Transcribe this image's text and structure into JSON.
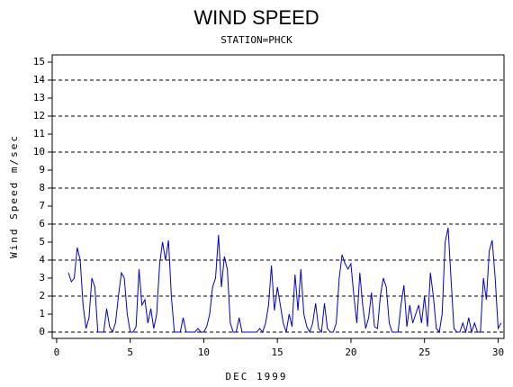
{
  "chart_data": {
    "type": "line",
    "title": "WIND SPEED",
    "subtitle": "STATION=PHCK",
    "x_label": "DEC 1999",
    "y_label": "Wind Speed m/sec",
    "xlim": [
      -0.3,
      30.4
    ],
    "ylim": [
      -0.35,
      15.4
    ],
    "xticks": [
      0,
      5,
      10,
      15,
      20,
      25,
      30
    ],
    "yticks": [
      0,
      1,
      2,
      3,
      4,
      5,
      6,
      7,
      8,
      9,
      10,
      11,
      12,
      13,
      14,
      15
    ],
    "grid": true,
    "series": [
      {
        "name": "Wind Speed",
        "color": "#0000cc",
        "x": [
          0.8,
          1.0,
          1.2,
          1.4,
          1.6,
          1.8,
          2.0,
          2.2,
          2.4,
          2.6,
          2.8,
          3.0,
          3.2,
          3.4,
          3.6,
          3.8,
          4.0,
          4.2,
          4.4,
          4.6,
          4.8,
          5.0,
          5.2,
          5.4,
          5.6,
          5.8,
          6.0,
          6.2,
          6.4,
          6.6,
          6.8,
          7.0,
          7.2,
          7.4,
          7.6,
          7.8,
          8.0,
          8.2,
          8.4,
          8.6,
          8.8,
          9.0,
          9.2,
          9.4,
          9.6,
          9.8,
          10.0,
          10.2,
          10.4,
          10.6,
          10.8,
          11.0,
          11.2,
          11.4,
          11.6,
          11.8,
          12.0,
          12.2,
          12.4,
          12.6,
          12.8,
          13.0,
          13.2,
          13.4,
          13.6,
          13.8,
          14.0,
          14.2,
          14.4,
          14.6,
          14.8,
          15.0,
          15.2,
          15.4,
          15.6,
          15.8,
          16.0,
          16.2,
          16.4,
          16.6,
          16.8,
          17.0,
          17.2,
          17.4,
          17.6,
          17.8,
          18.0,
          18.2,
          18.4,
          18.6,
          18.8,
          19.0,
          19.2,
          19.4,
          19.6,
          19.8,
          20.0,
          20.2,
          20.4,
          20.6,
          20.8,
          21.0,
          21.2,
          21.4,
          21.6,
          21.8,
          22.0,
          22.2,
          22.4,
          22.6,
          22.8,
          23.0,
          23.2,
          23.4,
          23.6,
          23.8,
          24.0,
          24.2,
          24.4,
          24.6,
          24.8,
          25.0,
          25.2,
          25.4,
          25.6,
          25.8,
          26.0,
          26.2,
          26.4,
          26.6,
          26.8,
          27.0,
          27.2,
          27.4,
          27.6,
          27.8,
          28.0,
          28.2,
          28.4,
          28.6,
          28.8,
          29.0,
          29.2,
          29.4,
          29.6,
          29.8,
          30.0,
          30.2
        ],
        "values": [
          3.3,
          2.8,
          3.0,
          4.7,
          4.0,
          1.5,
          0.2,
          0.8,
          3.0,
          2.5,
          0,
          0,
          0,
          1.3,
          0.3,
          0,
          0.5,
          2.0,
          3.3,
          3.0,
          1.0,
          0,
          0,
          0.3,
          3.5,
          1.5,
          1.8,
          0.5,
          1.3,
          0.2,
          1.0,
          3.8,
          5.0,
          4.0,
          5.1,
          2.0,
          0,
          0,
          0,
          0.8,
          0,
          0,
          0,
          0,
          0.2,
          0,
          0,
          0.3,
          1.0,
          2.5,
          3.0,
          5.4,
          2.5,
          4.2,
          3.5,
          0.5,
          0,
          0,
          0.8,
          0,
          0,
          0,
          0,
          0,
          0,
          0.2,
          0,
          0.5,
          1.5,
          3.7,
          1.2,
          2.5,
          1.5,
          0.5,
          0,
          1.0,
          0.3,
          3.2,
          1.2,
          3.5,
          1.0,
          0.3,
          0,
          0.5,
          1.6,
          0.2,
          0,
          1.6,
          0.2,
          0,
          0,
          0.5,
          3.0,
          4.3,
          3.8,
          3.5,
          3.8,
          2.0,
          0.5,
          3.3,
          1.5,
          0.2,
          0.8,
          2.2,
          0.3,
          0.2,
          2.0,
          3.0,
          2.5,
          0.5,
          0,
          0,
          0,
          1.5,
          2.6,
          0.3,
          1.5,
          0.5,
          1.0,
          1.5,
          0.5,
          2.0,
          0.3,
          3.3,
          2.0,
          0.2,
          0,
          1.0,
          5.0,
          5.8,
          3.0,
          0.2,
          0,
          0,
          0.5,
          0,
          0.8,
          0,
          0.5,
          0,
          0,
          3.0,
          1.8,
          4.5,
          5.1,
          3.0,
          0.2,
          0.5
        ]
      }
    ]
  }
}
